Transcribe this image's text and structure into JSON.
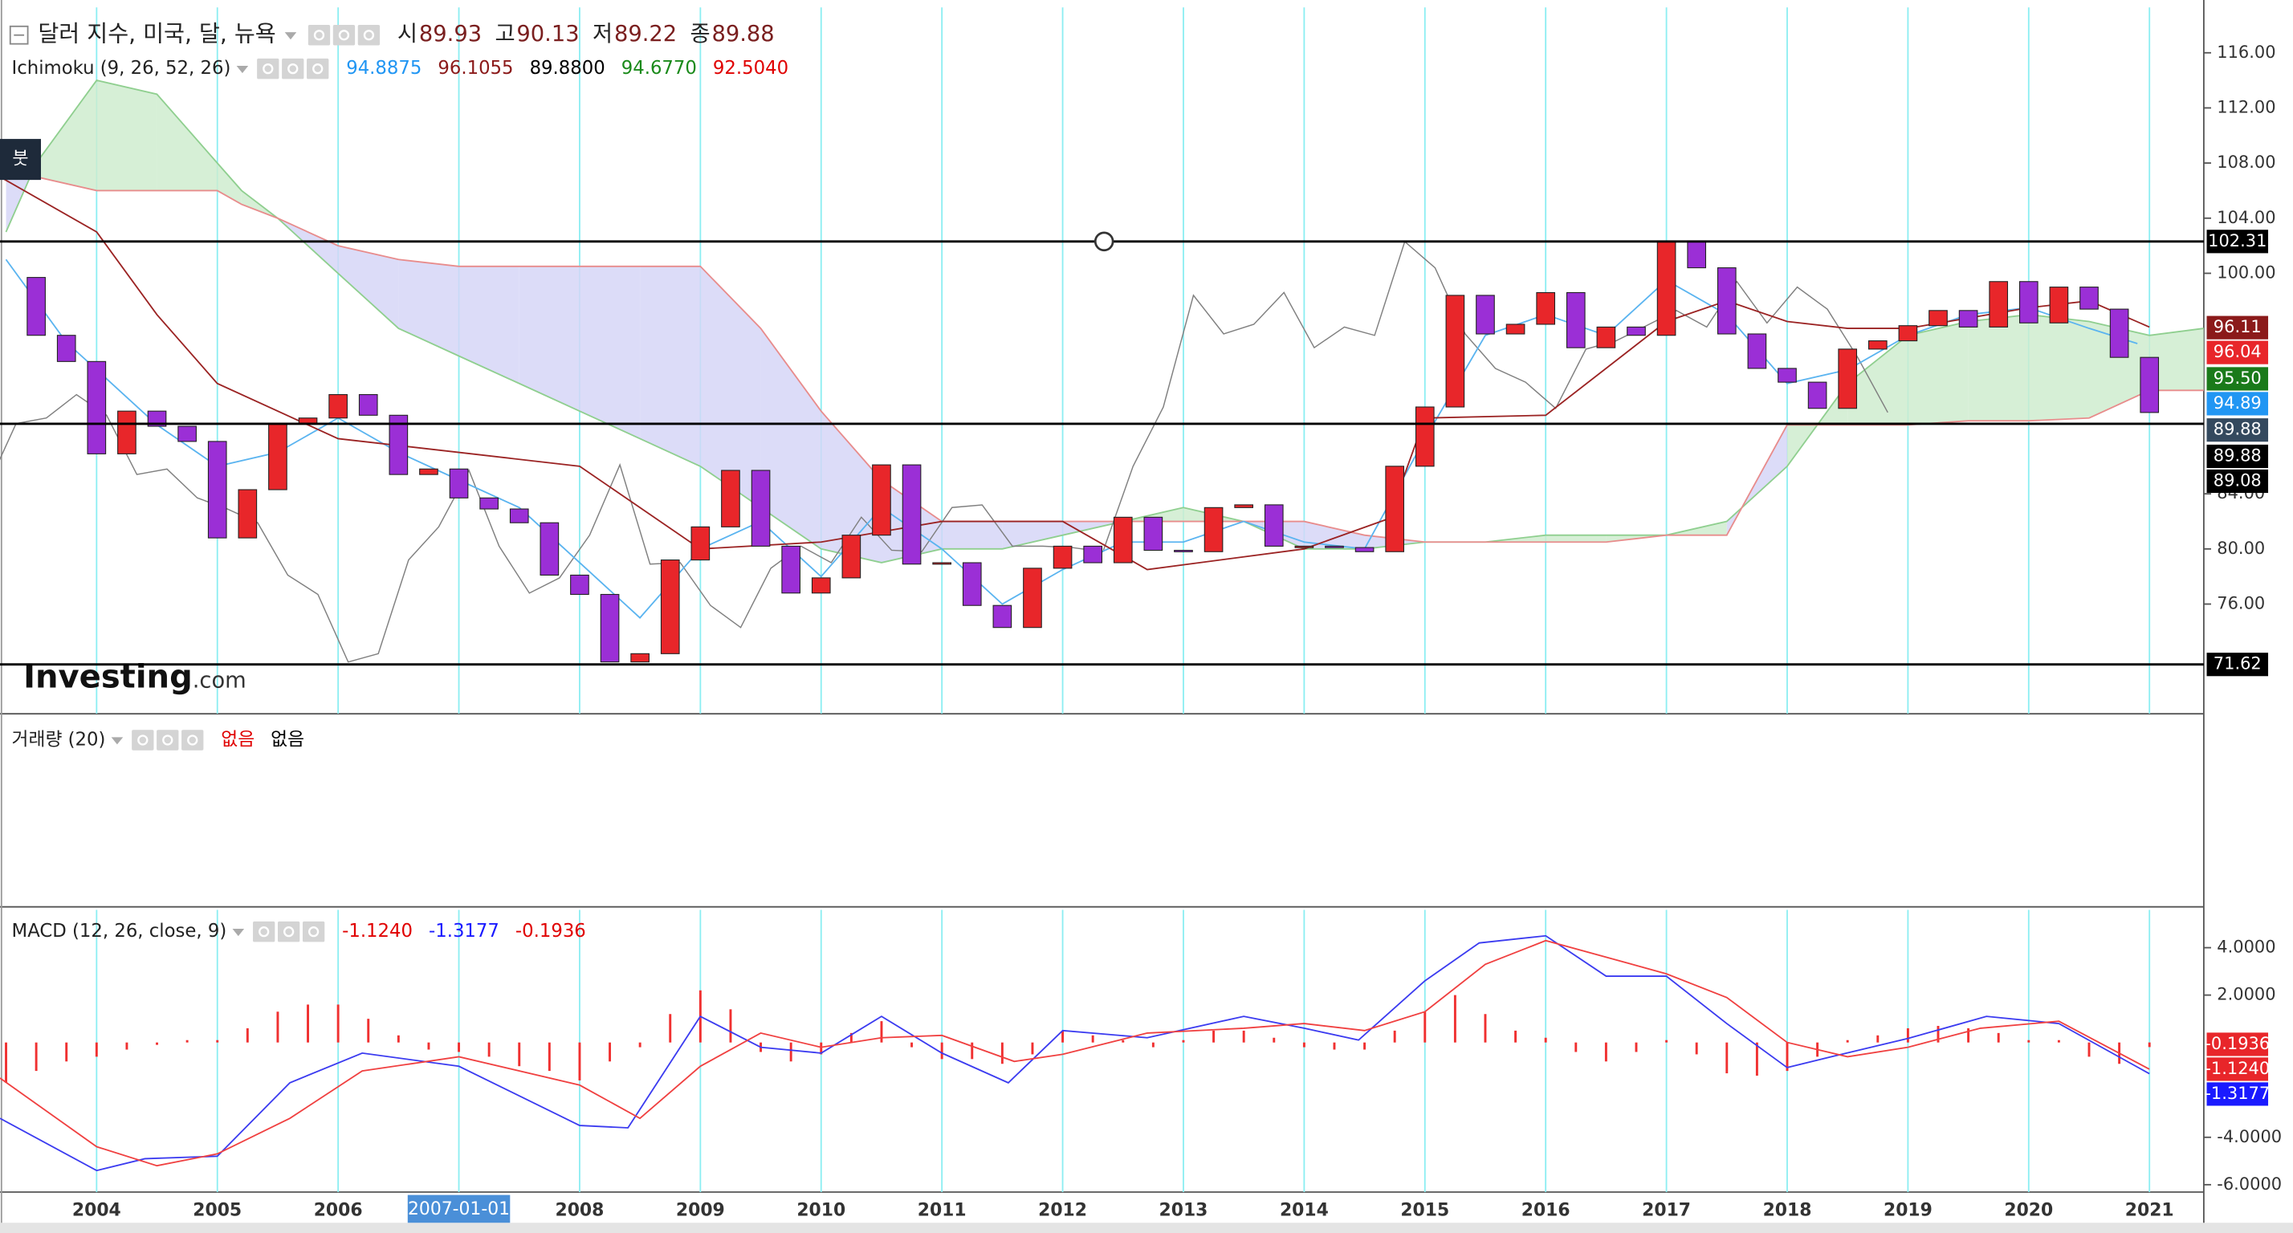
{
  "header": {
    "title": "달러 지수, 미국, 달, 뉴욕",
    "quote": [
      {
        "label": "시",
        "value": "89.93"
      },
      {
        "label": "고",
        "value": "90.13"
      },
      {
        "label": "저",
        "value": "89.22"
      },
      {
        "label": "종",
        "value": "89.88"
      }
    ],
    "value_color": "#7a1f1f"
  },
  "tool_badge": "붓",
  "watermark": {
    "brand": "Investing",
    "suffix": ".com"
  },
  "indicators": [
    {
      "name": "Ichimoku (9, 26, 52, 26)",
      "values": [
        {
          "text": "94.8875",
          "color": "#2196f3"
        },
        {
          "text": "96.1055",
          "color": "#8b1a1a"
        },
        {
          "text": "89.8800",
          "color": "#000000"
        },
        {
          "text": "94.6770",
          "color": "#1a8a1a"
        },
        {
          "text": "92.5040",
          "color": "#e00000"
        }
      ]
    },
    {
      "name": "거래량 (20)",
      "values": [
        {
          "text": "없음",
          "color": "#e00000"
        },
        {
          "text": "없음",
          "color": "#000000"
        }
      ]
    },
    {
      "name": "MACD (12, 26, close, 9)",
      "values": [
        {
          "text": "-1.1240",
          "color": "#e00000"
        },
        {
          "text": "-1.3177",
          "color": "#1a1aff"
        },
        {
          "text": "-0.1936",
          "color": "#e00000"
        }
      ]
    }
  ],
  "chart_data": [
    {
      "type": "candlestick",
      "up_color": "#e8262a",
      "down_color": "#9b2fd6",
      "grid_color": "#8ceef2",
      "xlim": [
        2003.2,
        2021.45
      ],
      "xticks": [
        2004,
        2005,
        2006,
        2007,
        2008,
        2009,
        2010,
        2011,
        2012,
        2013,
        2014,
        2015,
        2016,
        2017,
        2018,
        2019,
        2020,
        2021
      ],
      "ylim": [
        68.04,
        119.3
      ],
      "yticks": [
        {
          "value": 76,
          "label": "76.00"
        },
        {
          "value": 80,
          "label": "80.00"
        },
        {
          "value": 84,
          "label": "84.00"
        },
        {
          "value": 100,
          "label": "100.00"
        },
        {
          "value": 104,
          "label": "104.00"
        },
        {
          "value": 108,
          "label": "108.00"
        },
        {
          "value": 112,
          "label": "112.00"
        },
        {
          "value": 116,
          "label": "116.00"
        }
      ],
      "x": [
        2003.25,
        2003.5,
        2003.75,
        2004,
        2004.25,
        2004.5,
        2004.75,
        2005,
        2005.25,
        2005.5,
        2005.75,
        2006,
        2006.25,
        2006.5,
        2006.75,
        2007,
        2007.25,
        2007.5,
        2007.75,
        2008,
        2008.25,
        2008.5,
        2008.75,
        2009,
        2009.25,
        2009.5,
        2009.75,
        2010,
        2010.25,
        2010.5,
        2010.75,
        2011,
        2011.25,
        2011.5,
        2011.75,
        2012,
        2012.25,
        2012.5,
        2012.75,
        2013,
        2013.25,
        2013.5,
        2013.75,
        2014,
        2014.25,
        2014.5,
        2014.75,
        2015,
        2015.25,
        2015.5,
        2015.75,
        2016,
        2016.25,
        2016.5,
        2016.75,
        2017,
        2017.25,
        2017.5,
        2017.75,
        2018,
        2018.25,
        2018.5,
        2018.75,
        2019,
        2019.25,
        2019.5,
        2019.75,
        2020,
        2020.25,
        2020.5,
        2020.75,
        2021
      ],
      "values": [
        99.7,
        95.5,
        93.6,
        86.9,
        90.0,
        88.9,
        87.8,
        80.8,
        84.3,
        89.1,
        89.5,
        91.2,
        89.7,
        85.4,
        85.8,
        83.7,
        82.9,
        81.9,
        78.1,
        76.7,
        71.8,
        72.4,
        79.2,
        81.6,
        85.7,
        80.2,
        76.8,
        77.9,
        81.0,
        86.1,
        78.9,
        79.0,
        75.9,
        74.3,
        78.6,
        80.2,
        79.0,
        82.3,
        79.9,
        79.8,
        83.0,
        83.2,
        80.2,
        80.2,
        80.1,
        79.8,
        86.0,
        90.3,
        98.4,
        95.6,
        96.3,
        98.6,
        94.6,
        96.1,
        95.5,
        102.3,
        100.4,
        95.6,
        93.1,
        92.1,
        90.2,
        94.5,
        95.1,
        96.2,
        97.3,
        96.1,
        99.4,
        96.4,
        99.0,
        97.4,
        93.9,
        89.9
      ],
      "lagging_color": "#808080",
      "lagging_shift": -2.1667,
      "ichimoku": {
        "lines": [
          {
            "color": "#5ab4f0",
            "x": [
              2003.25,
              2003.75,
              2004,
              2004.5,
              2005,
              2005.5,
              2006,
              2006.5,
              2007,
              2007.5,
              2008,
              2008.5,
              2009,
              2009.5,
              2010,
              2010.5,
              2011,
              2011.5,
              2012,
              2012.5,
              2013,
              2013.5,
              2014,
              2014.5,
              2015,
              2015.5,
              2016,
              2016.5,
              2017,
              2017.5,
              2018,
              2018.5,
              2019,
              2019.5,
              2020,
              2020.5,
              2020.9
            ],
            "values": [
              101,
              95,
              93,
              89,
              86,
              87,
              89.5,
              87,
              85,
              83,
              79,
              75,
              80,
              82,
              78,
              83,
              80,
              76,
              78.5,
              80.5,
              80.5,
              82,
              80.5,
              80,
              88,
              95.5,
              97,
              95.5,
              99.5,
              97,
              92,
              93,
              95.5,
              97,
              97.5,
              96,
              94.9
            ]
          },
          {
            "color": "#9b2323",
            "x": [
              2003.2,
              2004,
              2004.5,
              2005,
              2006,
              2007,
              2008,
              2009,
              2010,
              2011,
              2012,
              2012.7,
              2014,
              2014.7,
              2015,
              2016,
              2017,
              2017.5,
              2018,
              2018.5,
              2019,
              2020,
              2020.5,
              2021
            ],
            "values": [
              107,
              103,
              97,
              92,
              88,
              87,
              86,
              80,
              80.5,
              82,
              82,
              78.5,
              80,
              82.2,
              89.5,
              89.7,
              96.5,
              98,
              96.5,
              96,
              96,
              97.5,
              98,
              96.1
            ]
          }
        ],
        "cloud": {
          "x": [
            2003.25,
            2003.5,
            2004,
            2004.5,
            2005,
            2005.2,
            2005.5,
            2006,
            2006.5,
            2007,
            2007.5,
            2008,
            2008.5,
            2009,
            2009.5,
            2010,
            2010.5,
            2011,
            2011.5,
            2012,
            2012.5,
            2013,
            2013.5,
            2014,
            2014.5,
            2015,
            2015.5,
            2016,
            2016.5,
            2017,
            2017.5,
            2018,
            2018.5,
            2019,
            2019.5,
            2020,
            2020.5,
            2021,
            2021.45
          ],
          "span_a": [
            103,
            108,
            114,
            113,
            108,
            106,
            104,
            100,
            96,
            94,
            92,
            90,
            88,
            86,
            83,
            80,
            79,
            80,
            80,
            81,
            82,
            83,
            82,
            80,
            80,
            80.5,
            80.5,
            81,
            81,
            81,
            82,
            86,
            92,
            95.5,
            96.5,
            97,
            96.5,
            95.5,
            96
          ],
          "span_b": [
            109,
            107,
            106,
            106,
            106,
            105,
            104,
            102,
            101,
            100.5,
            100.5,
            100.5,
            100.5,
            100.5,
            96,
            90,
            85,
            82,
            82,
            82,
            82,
            82,
            82,
            82,
            81,
            80.5,
            80.5,
            80.5,
            80.5,
            81,
            81,
            89,
            89,
            89,
            89.3,
            89.3,
            89.5,
            91.5,
            91.5
          ],
          "span_a_color": "#8fcf8f",
          "span_b_color": "#e88c8c",
          "up_fill": "#cfeccf",
          "down_fill": "#d6d6f7"
        }
      },
      "levels": [
        102.31,
        89.08,
        71.62
      ],
      "level_color": "#000000",
      "price_labels": [
        {
          "value": 96.11,
          "color": "#8b1a1a"
        },
        {
          "value": 96.04,
          "color": "#e8262a"
        },
        {
          "value": 95.5,
          "label": "95.50",
          "color": "#1a7a1a"
        },
        {
          "value": 94.89,
          "color": "#2196f3"
        },
        {
          "value": 89.88,
          "color": "#34495e"
        },
        {
          "value": 89.88,
          "color": "#000000"
        }
      ]
    },
    {
      "type": "line",
      "xlim": [
        2003.2,
        2021.45
      ],
      "xticks": [
        2004,
        2005,
        2006,
        2007,
        2008,
        2009,
        2010,
        2011,
        2012,
        2013,
        2014,
        2015,
        2016,
        2017,
        2018,
        2019,
        2020,
        2021
      ],
      "crosshair": {
        "value": 2007,
        "label": "2007-01-01",
        "color": "#4a8fd8"
      },
      "ylim": [
        -6.31,
        5.6
      ],
      "yticks": [
        {
          "value": -6,
          "label": "-6.0000"
        },
        {
          "value": -4,
          "label": "-4.0000"
        },
        {
          "value": 2,
          "label": "2.0000"
        },
        {
          "value": 4,
          "label": "4.0000"
        }
      ],
      "series": [
        {
          "color": "#3b3bf0",
          "x": [
            2003.2,
            2004,
            2004.4,
            2005,
            2005.6,
            2006.2,
            2007,
            2008,
            2008.4,
            2009,
            2009.5,
            2010,
            2010.5,
            2011,
            2011.55,
            2012,
            2012.7,
            2013.5,
            2014,
            2014.45,
            2015,
            2015.45,
            2016,
            2016.5,
            2017,
            2017.5,
            2018,
            2018.45,
            2019,
            2019.65,
            2020.25,
            2021
          ],
          "values": [
            -3.2,
            -5.4,
            -4.9,
            -4.8,
            -1.7,
            -0.45,
            -1.0,
            -3.5,
            -3.6,
            1.1,
            -0.2,
            -0.45,
            1.1,
            -0.45,
            -1.7,
            0.5,
            0.2,
            1.1,
            0.6,
            0.1,
            2.6,
            4.2,
            4.5,
            2.8,
            2.8,
            0.8,
            -1.06,
            -0.5,
            0.17,
            1.1,
            0.8,
            -1.3177
          ]
        },
        {
          "color": "#f04040",
          "x": [
            2003.2,
            2004,
            2004.5,
            2005,
            2005.6,
            2006.2,
            2007,
            2008,
            2008.5,
            2009,
            2009.5,
            2010,
            2010.5,
            2011,
            2011.6,
            2012,
            2012.7,
            2013.5,
            2014,
            2014.5,
            2015,
            2015.5,
            2016,
            2016.5,
            2017,
            2017.5,
            2018,
            2018.5,
            2019,
            2019.6,
            2020.25,
            2021
          ],
          "values": [
            -1.5,
            -4.4,
            -5.2,
            -4.7,
            -3.2,
            -1.2,
            -0.6,
            -1.8,
            -3.2,
            -1.0,
            0.4,
            -0.2,
            0.2,
            0.3,
            -0.8,
            -0.5,
            0.4,
            0.6,
            0.8,
            0.5,
            1.3,
            3.3,
            4.3,
            3.6,
            2.9,
            1.9,
            0.0,
            -0.6,
            -0.2,
            0.6,
            0.9,
            -1.124
          ]
        }
      ],
      "histogram": {
        "color": "#f03030",
        "x": [
          2003.25,
          2003.5,
          2003.75,
          2004,
          2004.25,
          2004.5,
          2004.75,
          2005,
          2005.25,
          2005.5,
          2005.75,
          2006,
          2006.25,
          2006.5,
          2006.75,
          2007,
          2007.25,
          2007.5,
          2007.75,
          2008,
          2008.25,
          2008.5,
          2008.75,
          2009,
          2009.25,
          2009.5,
          2009.75,
          2010,
          2010.25,
          2010.5,
          2010.75,
          2011,
          2011.25,
          2011.5,
          2011.75,
          2012,
          2012.25,
          2012.5,
          2012.75,
          2013,
          2013.25,
          2013.5,
          2013.75,
          2014,
          2014.25,
          2014.5,
          2014.75,
          2015,
          2015.25,
          2015.5,
          2015.75,
          2016,
          2016.25,
          2016.5,
          2016.75,
          2017,
          2017.25,
          2017.5,
          2017.75,
          2018,
          2018.25,
          2018.5,
          2018.75,
          2019,
          2019.25,
          2019.5,
          2019.75,
          2020,
          2020.25,
          2020.5,
          2020.75,
          2021
        ],
        "values": [
          -1.7,
          -1.2,
          -0.8,
          -0.6,
          -0.3,
          -0.1,
          0.1,
          0.1,
          0.6,
          1.3,
          1.6,
          1.6,
          1.0,
          0.3,
          -0.3,
          -0.4,
          -0.6,
          -1.0,
          -1.2,
          -1.6,
          -0.8,
          -0.2,
          1.2,
          2.2,
          1.4,
          -0.4,
          -0.8,
          -0.5,
          0.4,
          0.9,
          -0.2,
          -0.7,
          -0.7,
          -0.9,
          -0.5,
          0.5,
          0.3,
          0.1,
          -0.2,
          0.1,
          0.5,
          0.5,
          0.2,
          -0.2,
          -0.3,
          -0.3,
          0.5,
          1.3,
          2.0,
          1.2,
          0.5,
          0.2,
          -0.4,
          -0.8,
          -0.4,
          0.1,
          -0.5,
          -1.3,
          -1.4,
          -1.2,
          -0.6,
          0.1,
          0.3,
          0.6,
          0.7,
          0.6,
          0.4,
          0.1,
          0.1,
          -0.6,
          -0.9,
          -0.1936
        ]
      },
      "price_labels": [
        {
          "value": -0.1936,
          "color": "#e8262a"
        },
        {
          "value": -1.124,
          "label": "-1.1240",
          "color": "#e8262a"
        },
        {
          "value": -1.3177,
          "color": "#1a1aff"
        }
      ]
    }
  ]
}
